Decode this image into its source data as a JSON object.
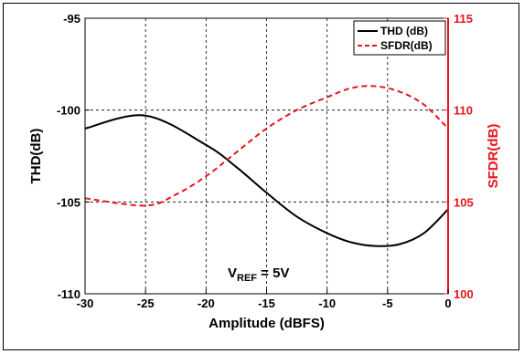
{
  "chart_data": {
    "type": "line",
    "xlabel": "Amplitude (dBFS)",
    "ylabel_left": "THD(dB)",
    "ylabel_right": "SFDR(dB)",
    "xlim": [
      -30,
      0
    ],
    "ylim_left": [
      -110,
      -95
    ],
    "ylim_right": [
      100,
      115
    ],
    "x_ticks": [
      "-30",
      "-25",
      "-20",
      "-15",
      "-10",
      "-5",
      "0"
    ],
    "y_ticks_left": [
      "-110",
      "-105",
      "-100",
      "-95"
    ],
    "y_ticks_right": [
      "100",
      "105",
      "110",
      "115"
    ],
    "grid": true,
    "legend_position": "top-right",
    "annotation": {
      "main": "V",
      "sub": "REF",
      "suffix": " = 5V"
    },
    "colors": {
      "thd": "#000000",
      "sfdr": "#e8141b",
      "grid": "#000000"
    },
    "series": [
      {
        "name": "THD (dB)",
        "axis": "left",
        "style": "solid",
        "x": [
          -30,
          -25,
          -20,
          -17.5,
          -15,
          -12.5,
          -10,
          -8,
          -6,
          -4,
          -2,
          0
        ],
        "y": [
          -101.0,
          -100.3,
          -101.9,
          -103.1,
          -104.5,
          -105.8,
          -106.7,
          -107.2,
          -107.4,
          -107.3,
          -106.7,
          -105.4
        ]
      },
      {
        "name": "SFDR(dB)",
        "axis": "right",
        "style": "dashed",
        "x": [
          -30,
          -25,
          -22.5,
          -20,
          -17.5,
          -15,
          -12.5,
          -10,
          -8,
          -6,
          -4,
          -2,
          0
        ],
        "y": [
          105.2,
          104.8,
          105.4,
          106.4,
          107.7,
          109.0,
          110.0,
          110.7,
          111.2,
          111.3,
          111.0,
          110.3,
          109.0
        ]
      }
    ]
  }
}
